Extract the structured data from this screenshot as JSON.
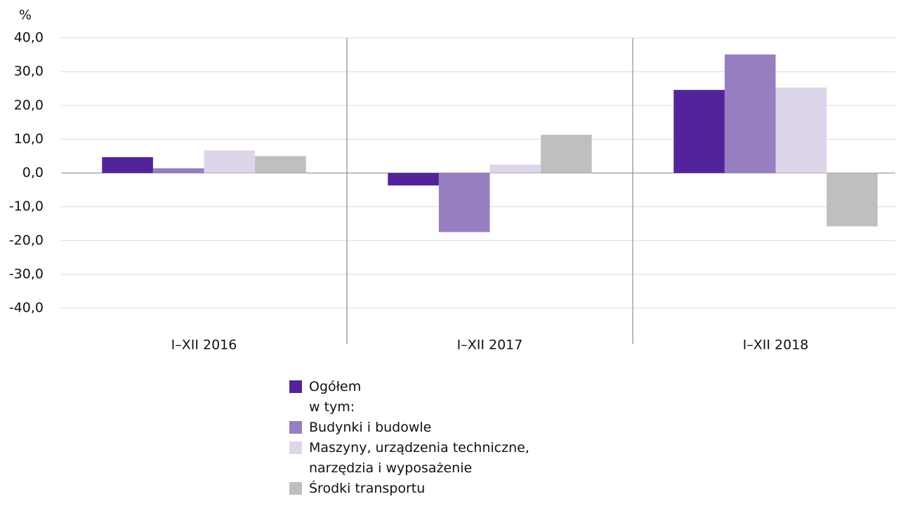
{
  "chart_data": {
    "type": "bar",
    "y_unit": "%",
    "categories": [
      "I–XII 2016",
      "I–XII 2017",
      "I–XII 2018"
    ],
    "series": [
      {
        "name": "Ogółem",
        "color": "#52239b",
        "values": [
          4.7,
          -3.7,
          24.6
        ]
      },
      {
        "name": "Budynki i budowle",
        "color": "#977ec0",
        "values": [
          1.4,
          -17.5,
          35.1
        ]
      },
      {
        "name": "Maszyny, urządzenia techniczne, narzędzia i wyposażenie",
        "color": "#ddd5ea",
        "values": [
          6.7,
          2.5,
          25.3
        ]
      },
      {
        "name": "Środki transportu",
        "color": "#bfbfbf",
        "values": [
          5.0,
          11.3,
          -15.8
        ]
      }
    ],
    "legend_note": "w tym:",
    "ylim": [
      -40,
      40
    ],
    "yticks": [
      {
        "value": 40,
        "label": "40,0"
      },
      {
        "value": 30,
        "label": "30,0"
      },
      {
        "value": 20,
        "label": "20,0"
      },
      {
        "value": 10,
        "label": "10,0"
      },
      {
        "value": 0,
        "label": "0,0"
      },
      {
        "value": -10,
        "label": "-10,0"
      },
      {
        "value": -20,
        "label": "-20,0"
      },
      {
        "value": -30,
        "label": "-30,0"
      },
      {
        "value": -40,
        "label": "-40,0"
      }
    ],
    "grid": true
  }
}
